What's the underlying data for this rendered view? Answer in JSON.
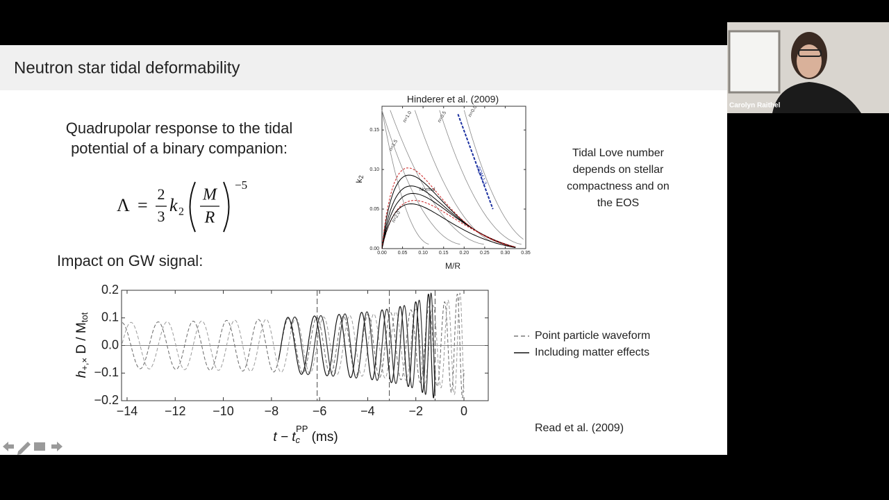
{
  "slide": {
    "title": "Neutron star tidal deformability",
    "intro_lines": [
      "Quadrupolar response to the tidal",
      "potential of a binary companion:"
    ],
    "equation": {
      "lhs": "Λ",
      "eq": "=",
      "num": "2",
      "den": "3",
      "k": "k",
      "k_sub": "2",
      "M": "M",
      "R": "R",
      "exponent": "−5"
    },
    "impact": "Impact on GW signal:",
    "love_note": [
      "Tidal Love number",
      "depends on stellar",
      "compactness and on",
      "the EOS"
    ],
    "citation": "Read et al. (2009)"
  },
  "figure_k2": {
    "title": "Hinderer et al. (2009)",
    "x_label": "M/R",
    "y_label": {
      "base": "k",
      "sub": "2"
    },
    "xlim": [
      0,
      0.35
    ],
    "ylim": [
      0,
      0.18
    ],
    "xticks": [
      {
        "value": 0,
        "label": "0.00"
      },
      {
        "value": 0.05,
        "label": "0.05"
      },
      {
        "value": 0.1,
        "label": "0.10"
      },
      {
        "value": 0.15,
        "label": "0.15"
      },
      {
        "value": 0.2,
        "label": "0.20"
      },
      {
        "value": 0.25,
        "label": "0.25"
      },
      {
        "value": 0.3,
        "label": "0.30"
      },
      {
        "value": 0.35,
        "label": "0.35"
      }
    ],
    "yticks": [
      {
        "value": 0,
        "label": "0.00"
      },
      {
        "value": 0.05,
        "label": "0.05"
      },
      {
        "value": 0.1,
        "label": "0.10"
      },
      {
        "value": 0.15,
        "label": "0.15"
      }
    ],
    "curve_labels": [
      "n=1.0",
      "n=0.5",
      "n=0.0",
      "n=1.5",
      "n=2.0",
      "SQM 1.3",
      "Normal"
    ]
  },
  "figure_gw": {
    "x_label": {
      "t": "t − t",
      "sub": "c",
      "sup": "PP",
      "unit": " (ms)"
    },
    "y_label": {
      "h": "h",
      "sub": "+,×",
      "mid": " D / M",
      "sub2": "tot"
    },
    "xlim": [
      -14.23,
      1.01
    ],
    "ylim": [
      -0.2,
      0.2
    ],
    "xticks": [
      {
        "value": -14,
        "label": "−14"
      },
      {
        "value": -12,
        "label": "−12"
      },
      {
        "value": -10,
        "label": "−10"
      },
      {
        "value": -8,
        "label": "−8"
      },
      {
        "value": -6,
        "label": "−6"
      },
      {
        "value": -4,
        "label": "−4"
      },
      {
        "value": -2,
        "label": "−2"
      },
      0
    ],
    "yticks": [
      {
        "value": -0.2,
        "label": "−0.2"
      },
      {
        "value": -0.1,
        "label": "−0.1"
      },
      {
        "value": 0,
        "label": "0.0"
      },
      0.1,
      0.2
    ],
    "legend": [
      "Point particle waveform",
      "Including matter effects"
    ]
  },
  "webcam": {
    "name": "Carolyn Raithel"
  }
}
